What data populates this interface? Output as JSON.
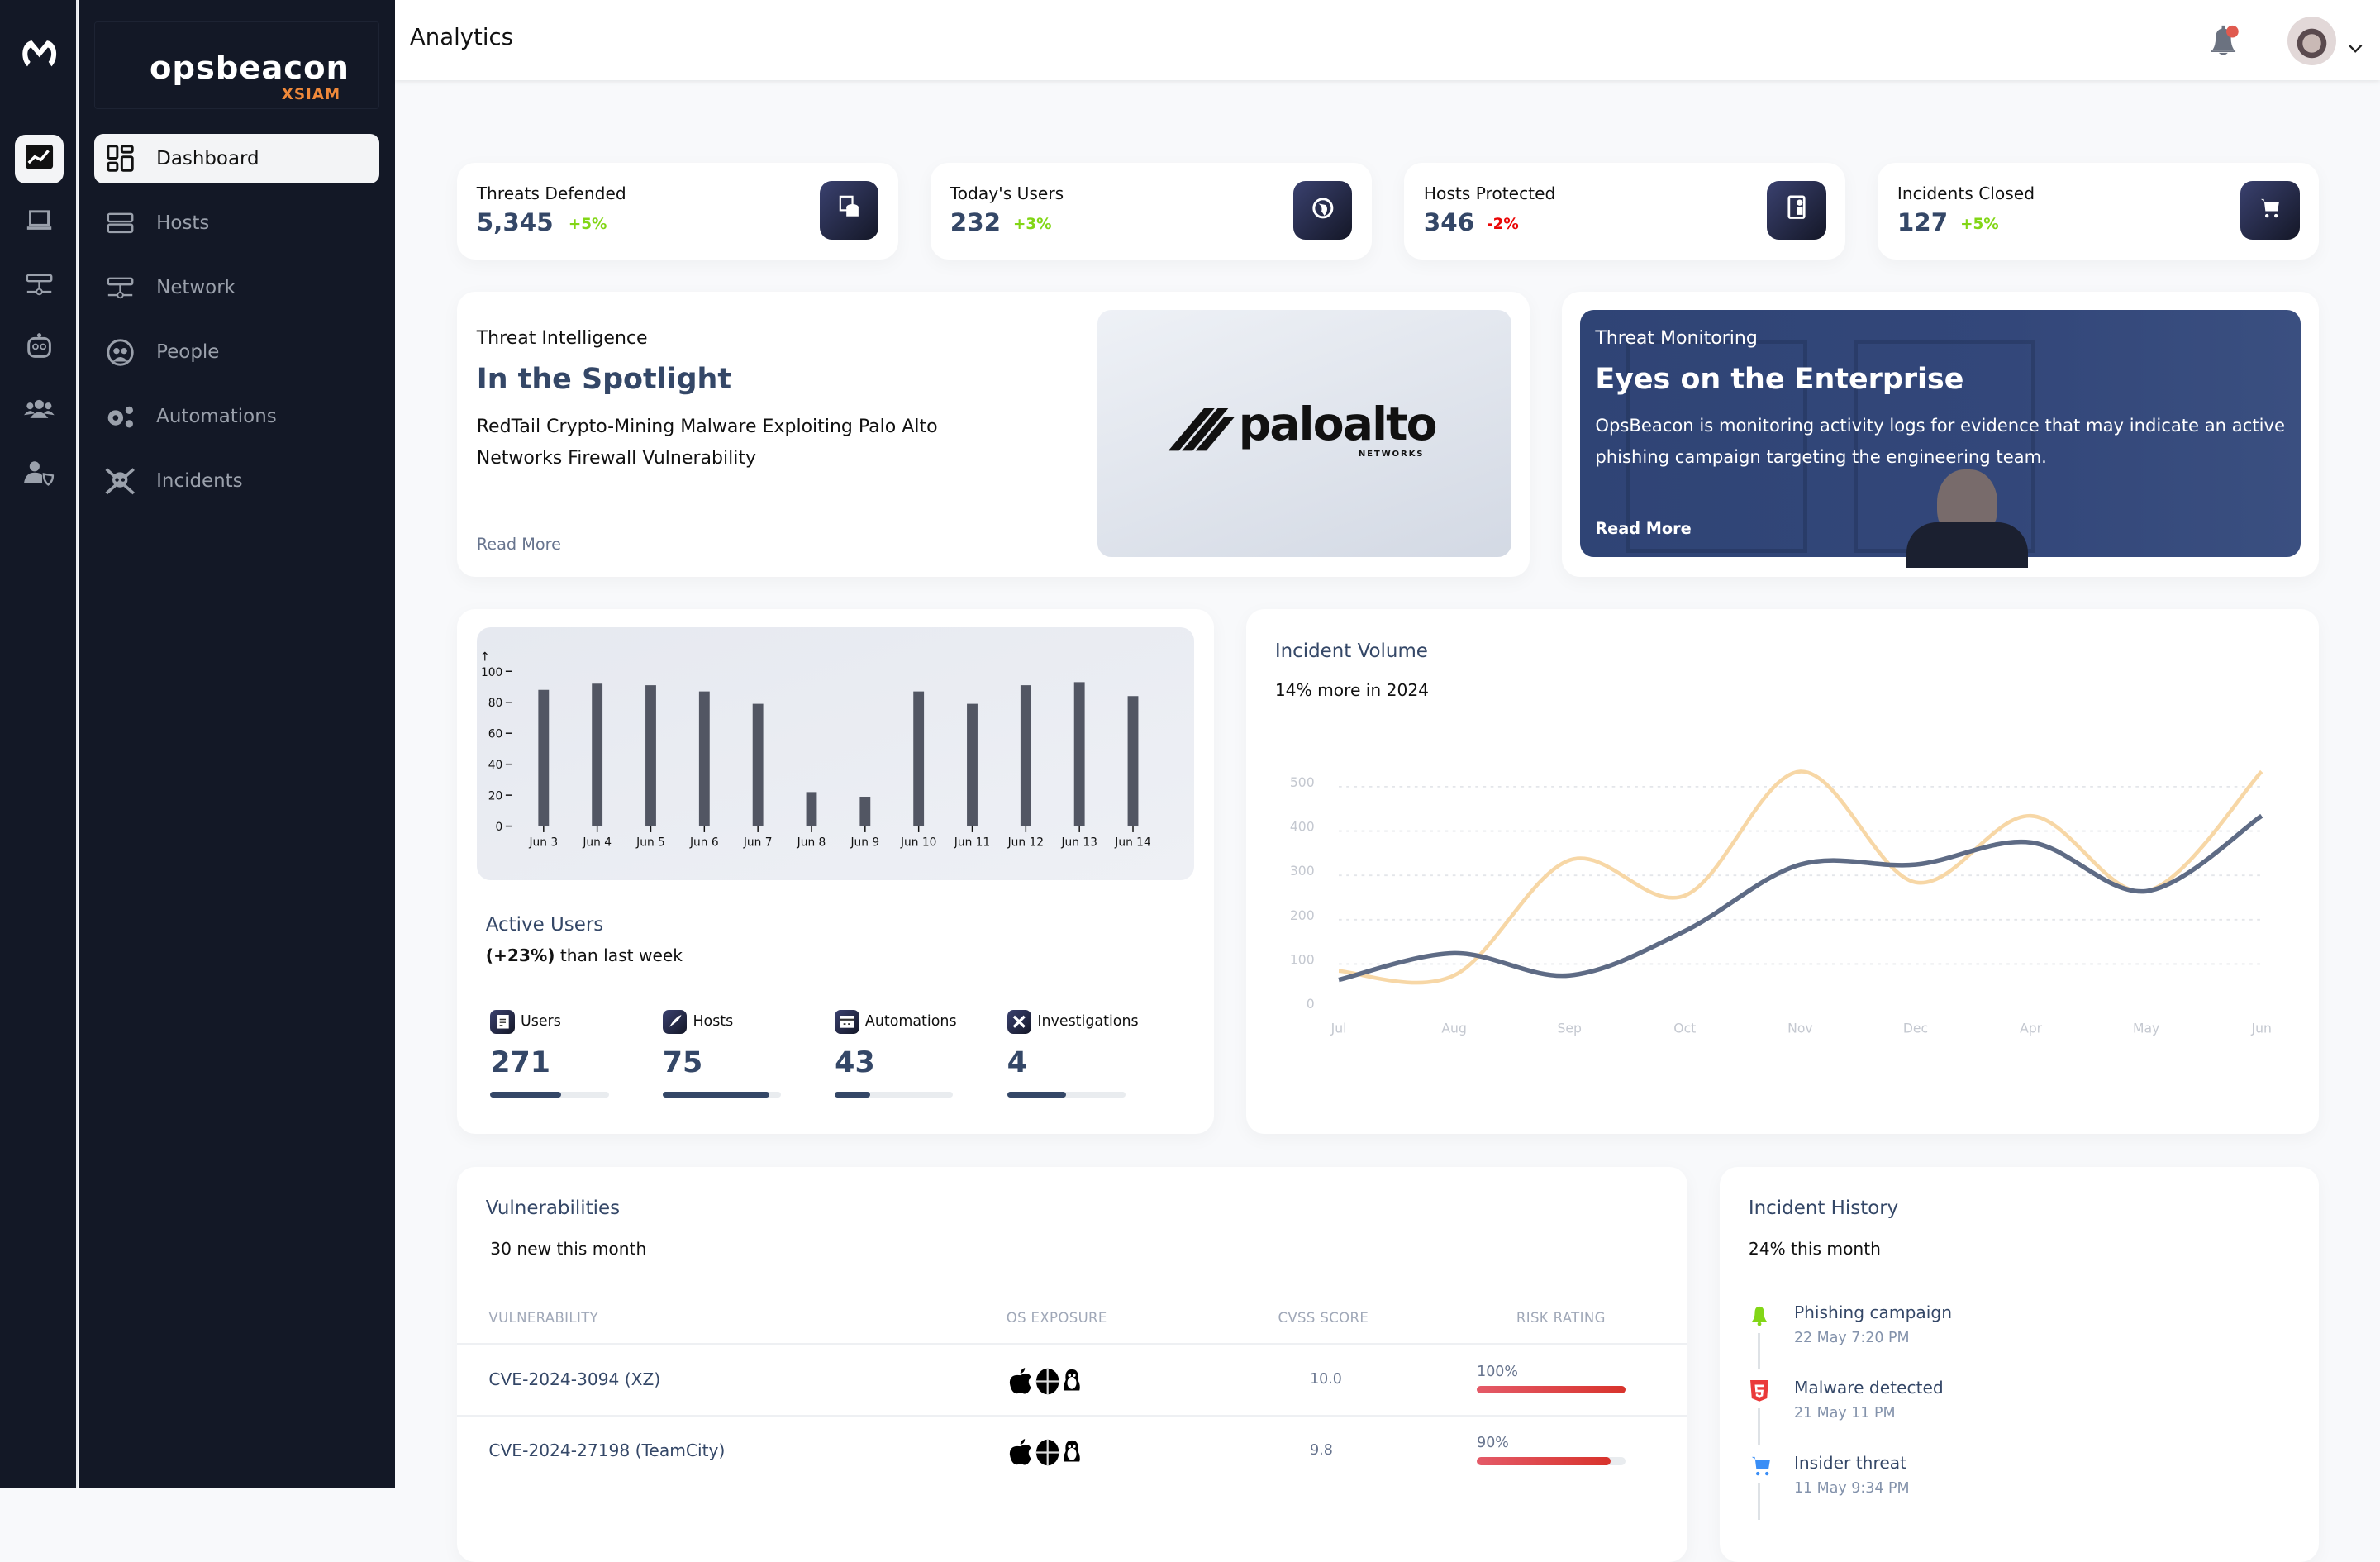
{
  "brand": {
    "name": "opsbeacon",
    "product": "XSIAM"
  },
  "rail": [
    {
      "icon": "chart-line-icon",
      "active": true
    },
    {
      "icon": "laptop-icon"
    },
    {
      "icon": "network-icon"
    },
    {
      "icon": "robot-icon"
    },
    {
      "icon": "users-icon"
    },
    {
      "icon": "user-shield-icon"
    }
  ],
  "sidebar": {
    "items": [
      {
        "label": "Dashboard",
        "icon": "dashboard-grid-icon",
        "active": true
      },
      {
        "label": "Hosts",
        "icon": "server-icon"
      },
      {
        "label": "Network",
        "icon": "network-icon"
      },
      {
        "label": "People",
        "icon": "people-icon"
      },
      {
        "label": "Automations",
        "icon": "gears-icon"
      },
      {
        "label": "Incidents",
        "icon": "skull-crossbones-icon"
      }
    ]
  },
  "header": {
    "title": "Analytics",
    "notification_dot_color": "#e05a4f"
  },
  "stats": [
    {
      "label": "Threats Defended",
      "value": "5,345",
      "change": "+5%",
      "trend": "up",
      "icon": "database-icon"
    },
    {
      "label": "Today's Users",
      "value": "232",
      "change": "+3%",
      "trend": "up",
      "icon": "globe-icon"
    },
    {
      "label": "Hosts Protected",
      "value": "346",
      "change": "-2%",
      "trend": "down",
      "icon": "id-badge-icon"
    },
    {
      "label": "Incidents Closed",
      "value": "127",
      "change": "+5%",
      "trend": "up",
      "icon": "cart-icon"
    }
  ],
  "colors": {
    "up": "#82d616",
    "down": "#ea0606",
    "accent": "#344767",
    "risk": "#d8332c",
    "line_dark": "#5e6b85",
    "line_light": "#f7d7a6"
  },
  "spotlight": {
    "kicker": "Threat Intelligence",
    "title": "In the Spotlight",
    "body": "RedTail Crypto-Mining Malware Exploiting Palo Alto Networks Firewall Vulnerability",
    "link": "Read More",
    "logo": {
      "name": "paloalto",
      "sub": "NETWORKS"
    }
  },
  "monitoring": {
    "kicker": "Threat Monitoring",
    "title": "Eyes on the Enterprise",
    "body": "OpsBeacon is monitoring activity logs for evidence that may indicate an active phishing campaign targeting the engineering team.",
    "link": "Read More"
  },
  "active_users": {
    "title": "Active Users",
    "change": "(+23%)",
    "change_suffix": " than last week",
    "metrics": [
      {
        "label": "Users",
        "value": "271",
        "progress": 60,
        "icon": "document-icon"
      },
      {
        "label": "Hosts",
        "value": "75",
        "progress": 90,
        "icon": "rocket-icon"
      },
      {
        "label": "Automations",
        "value": "43",
        "progress": 30,
        "icon": "card-icon"
      },
      {
        "label": "Investigations",
        "value": "4",
        "progress": 50,
        "icon": "tools-icon"
      }
    ]
  },
  "chart_data": [
    {
      "type": "bar",
      "categories": [
        "Jun 3",
        "Jun 4",
        "Jun 5",
        "Jun 6",
        "Jun 7",
        "Jun 8",
        "Jun 9",
        "Jun 10",
        "Jun 11",
        "Jun 12",
        "Jun 13",
        "Jun 14"
      ],
      "values": [
        88,
        92,
        91,
        87,
        79,
        22,
        19,
        87,
        79,
        91,
        93,
        84
      ],
      "yticks": [
        "0",
        "20",
        "40",
        "60",
        "80",
        "100"
      ],
      "ylim": [
        0,
        100
      ],
      "y_arrow": "↑",
      "grid": false
    },
    {
      "type": "line",
      "title": "Incident Volume",
      "subtitle": "14% more in 2024",
      "categories": [
        "Jul",
        "Aug",
        "Sep",
        "Oct",
        "Nov",
        "Dec",
        "Apr",
        "May",
        "Jun"
      ],
      "series": [
        {
          "values": [
            50,
            40,
            300,
            220,
            500,
            250,
            400,
            230,
            500
          ],
          "color": "#f7d7a6"
        },
        {
          "values": [
            30,
            90,
            40,
            140,
            290,
            290,
            340,
            230,
            400
          ],
          "color": "#5e6b85"
        }
      ],
      "yticks": [
        "0",
        "100",
        "200",
        "300",
        "400",
        "500"
      ],
      "ylim": [
        0,
        500
      ],
      "grid": true,
      "smooth": true
    }
  ],
  "vulnerabilities": {
    "title": "Vulnerabilities",
    "subtitle": "30 new this month",
    "columns": [
      "Vulnerability",
      "OS Exposure",
      "CVSS Score",
      "Risk Rating"
    ],
    "rows": [
      {
        "cve": "CVE-2024-3094 (XZ)",
        "os": [
          "apple-icon",
          "windows-icon",
          "linux-icon"
        ],
        "score": "10.0",
        "risk": "100%",
        "risk_value": 100
      },
      {
        "cve": "CVE-2024-27198 (TeamCity)",
        "os": [
          "apple-icon",
          "windows-icon",
          "linux-icon"
        ],
        "score": "9.8",
        "risk": "90%",
        "risk_value": 90
      }
    ]
  },
  "history": {
    "title": "Incident History",
    "subtitle": "24% this month",
    "items": [
      {
        "title": "Phishing campaign",
        "time": "22 May 7:20 PM",
        "icon": "bell-icon",
        "color": "#82d616"
      },
      {
        "title": "Malware detected",
        "time": "21 May 11 PM",
        "icon": "html5-icon",
        "color": "#ea3a3a"
      },
      {
        "title": "Insider threat",
        "time": "11 May 9:34 PM",
        "icon": "cart-icon",
        "color": "#3a8ef6"
      }
    ]
  }
}
